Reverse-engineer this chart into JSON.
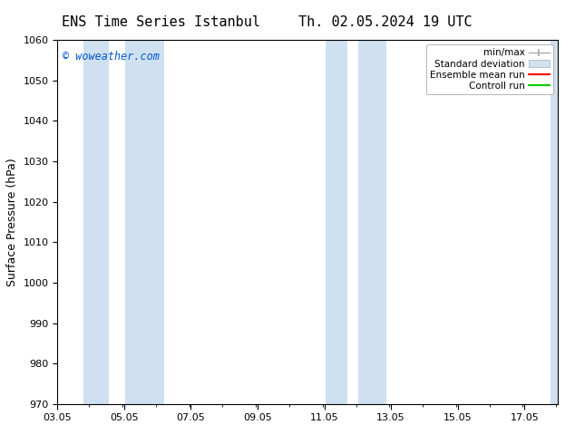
{
  "title_left": "ENS Time Series Istanbul",
  "title_right": "Th. 02.05.2024 19 UTC",
  "ylabel": "Surface Pressure (hPa)",
  "ylim": [
    970,
    1060
  ],
  "yticks": [
    970,
    980,
    990,
    1000,
    1010,
    1020,
    1030,
    1040,
    1050,
    1060
  ],
  "xlim_start": 3.05,
  "xlim_end": 18.05,
  "xtick_labels": [
    "03.05",
    "05.05",
    "07.05",
    "09.05",
    "11.05",
    "13.05",
    "15.05",
    "17.05"
  ],
  "xtick_positions": [
    3.05,
    5.05,
    7.05,
    9.05,
    11.05,
    13.05,
    15.05,
    17.05
  ],
  "watermark": "© woweather.com",
  "watermark_color": "#0055cc",
  "background_color": "#ffffff",
  "plot_bg_color": "#ffffff",
  "shaded_bands": [
    {
      "x_start": 3.83,
      "x_end": 4.58,
      "color": "#cfe0f0"
    },
    {
      "x_start": 5.08,
      "x_end": 6.25,
      "color": "#cfe0f0"
    },
    {
      "x_start": 11.08,
      "x_end": 11.75,
      "color": "#cfe0f0"
    },
    {
      "x_start": 12.08,
      "x_end": 12.92,
      "color": "#cfe0f0"
    },
    {
      "x_start": 17.83,
      "x_end": 18.08,
      "color": "#cfe0f0"
    }
  ],
  "legend_entries": [
    {
      "label": "min/max",
      "color": "#aaaaaa",
      "style": "minmax"
    },
    {
      "label": "Standard deviation",
      "color": "#cccccc",
      "style": "stddev"
    },
    {
      "label": "Ensemble mean run",
      "color": "#ff0000",
      "style": "line"
    },
    {
      "label": "Controll run",
      "color": "#00aa00",
      "style": "line"
    }
  ],
  "title_fontsize": 11,
  "tick_fontsize": 8,
  "legend_fontsize": 7.5,
  "ylabel_fontsize": 9,
  "watermark_fontsize": 8.5
}
